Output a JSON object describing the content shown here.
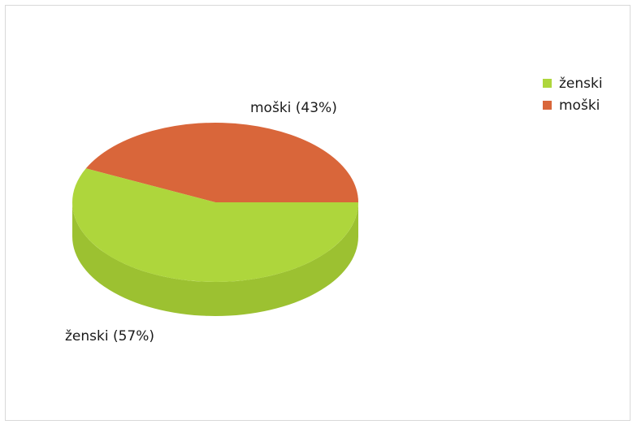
{
  "chart_data": {
    "type": "pie",
    "style": "3d",
    "series": [
      {
        "name": "ženski",
        "value": 57,
        "label": "ženski (57%)",
        "color": "#aed63c",
        "side_color": "#9cc131"
      },
      {
        "name": "moški",
        "value": 43,
        "label": "moški (43%)",
        "color": "#d9663a",
        "side_color": "#b9542e"
      }
    ],
    "legend": {
      "placement": "top-right",
      "items": [
        "ženski",
        "moški"
      ]
    }
  }
}
